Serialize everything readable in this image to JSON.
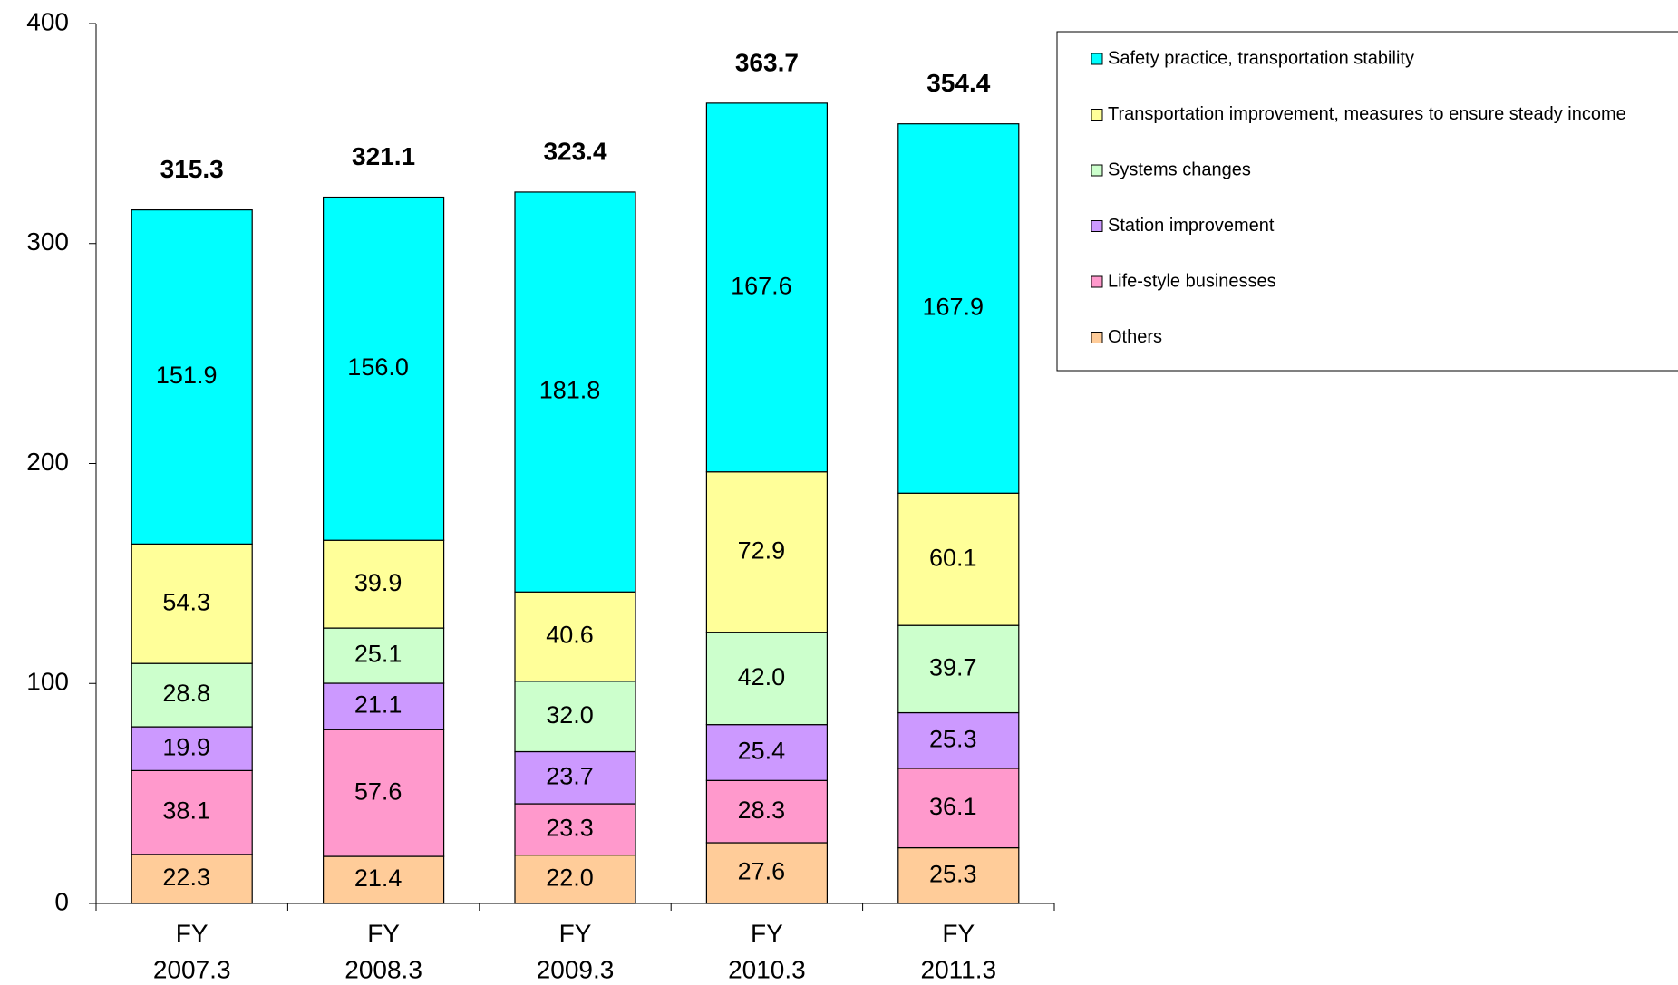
{
  "chart_data": {
    "type": "stacked_bar",
    "categories": [
      [
        "FY",
        "2007.3"
      ],
      [
        "FY",
        "2008.3"
      ],
      [
        "FY",
        "2009.3"
      ],
      [
        "FY",
        "2010.3"
      ],
      [
        "FY",
        "2011.3"
      ]
    ],
    "series": [
      {
        "name": "Others",
        "color": "#ffcc99",
        "values": [
          22.3,
          21.4,
          22.0,
          27.6,
          25.3
        ],
        "value_labels": [
          "22.3",
          "21.4",
          "22.0",
          "27.6",
          "25.3"
        ]
      },
      {
        "name": "Life-style businesses",
        "color": "#ff99cc",
        "values": [
          38.1,
          57.6,
          23.3,
          28.3,
          36.1
        ],
        "value_labels": [
          "38.1",
          "57.6",
          "23.3",
          "28.3",
          "36.1"
        ]
      },
      {
        "name": "Station improvement",
        "color": "#cc99ff",
        "values": [
          19.9,
          21.1,
          23.7,
          25.4,
          25.3
        ],
        "value_labels": [
          "19.9",
          "21.1",
          "23.7",
          "25.4",
          "25.3"
        ]
      },
      {
        "name": "Systems changes",
        "color": "#ccffcc",
        "values": [
          28.8,
          25.1,
          32.0,
          42.0,
          39.7
        ],
        "value_labels": [
          "28.8",
          "25.1",
          "32.0",
          "42.0",
          "39.7"
        ]
      },
      {
        "name": "Transportation improvement, measures to ensure steady income",
        "color": "#ffff99",
        "values": [
          54.3,
          39.9,
          40.6,
          72.9,
          60.1
        ],
        "value_labels": [
          "54.3",
          "39.9",
          "40.6",
          "72.9",
          "60.1"
        ]
      },
      {
        "name": "Safety practice, transportation stability",
        "color": "#00ffff",
        "values": [
          151.9,
          156.0,
          181.8,
          167.6,
          167.9
        ],
        "value_labels": [
          "151.9",
          "156.0",
          "181.8",
          "167.6",
          "167.9"
        ]
      }
    ],
    "totals": [
      315.3,
      321.1,
      323.4,
      363.7,
      354.4
    ],
    "ylim": [
      0,
      400
    ],
    "yticks": [
      0,
      100,
      200,
      300,
      400
    ],
    "legend": "right"
  }
}
